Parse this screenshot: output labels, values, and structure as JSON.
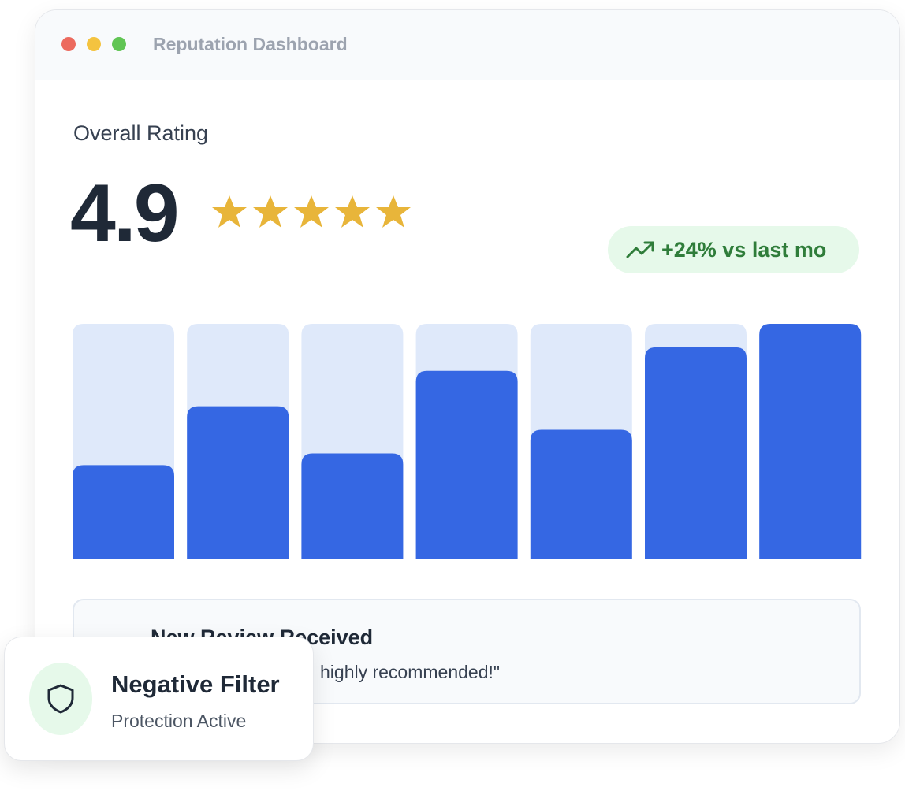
{
  "window": {
    "title": "Reputation Dashboard"
  },
  "rating": {
    "label": "Overall Rating",
    "score": "4.9",
    "trend": "+24% vs last mo"
  },
  "chart_data": {
    "type": "bar",
    "values": [
      40,
      65,
      45,
      80,
      55,
      90,
      100
    ],
    "ylim": [
      0,
      100
    ],
    "color": "#3567e3",
    "track_color": "#dfe9fa"
  },
  "review": {
    "title": "New Review Received",
    "text": "highly recommended!\""
  },
  "filter_card": {
    "title": "Negative Filter",
    "subtitle": "Protection Active"
  }
}
